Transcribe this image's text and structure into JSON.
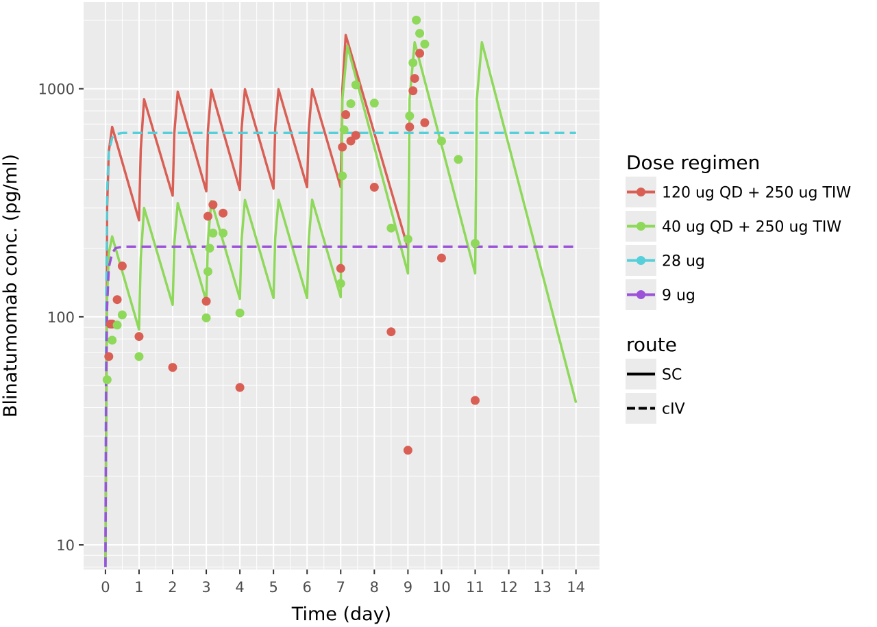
{
  "chart_data": {
    "type": "line",
    "xlabel": "Time (day)",
    "ylabel": "Blinatumomab conc. (pg/ml)",
    "xlim": [
      -0.65,
      14.7
    ],
    "ylim": [
      7.8,
      2400
    ],
    "y_scale": "log",
    "grid": true,
    "x_ticks": [
      "0",
      "1",
      "2",
      "3",
      "4",
      "5",
      "6",
      "7",
      "8",
      "9",
      "10",
      "11",
      "12",
      "13",
      "14"
    ],
    "y_ticks": [
      {
        "value": 10,
        "label": "10"
      },
      {
        "value": 100,
        "label": "100"
      },
      {
        "value": 1000,
        "label": "1000"
      }
    ],
    "legend_position": "right",
    "legends": [
      {
        "title": "Dose regimen",
        "entries": [
          {
            "label": "120 ug QD + 250 ug TIW",
            "color": "#D95F55"
          },
          {
            "label": "40 ug QD + 250 ug TIW",
            "color": "#8ED85A"
          },
          {
            "label": "28 ug",
            "color": "#55CFD9"
          },
          {
            "label": "9 ug",
            "color": "#9B52D9"
          }
        ]
      },
      {
        "title": "route",
        "entries": [
          {
            "label": "SC",
            "linetype": "solid"
          },
          {
            "label": "cIV",
            "linetype": "dashed"
          }
        ]
      }
    ],
    "series": [
      {
        "regimen": "120 ug QD + 250 ug TIW",
        "route": "SC",
        "color": "#D95F55",
        "line": [
          [
            0,
            8
          ],
          [
            0.05,
            300
          ],
          [
            0.1,
            530
          ],
          [
            0.2,
            680
          ],
          [
            1,
            265
          ],
          [
            1.05,
            540
          ],
          [
            1.15,
            900
          ],
          [
            2,
            340
          ],
          [
            2.05,
            640
          ],
          [
            2.15,
            970
          ],
          [
            3,
            355
          ],
          [
            3.05,
            660
          ],
          [
            3.15,
            990
          ],
          [
            4,
            360
          ],
          [
            4.05,
            670
          ],
          [
            4.15,
            995
          ],
          [
            5,
            365
          ],
          [
            5.05,
            670
          ],
          [
            5.15,
            995
          ],
          [
            6,
            370
          ],
          [
            6.05,
            670
          ],
          [
            6.15,
            995
          ],
          [
            7,
            370
          ],
          [
            7.05,
            1000
          ],
          [
            7.15,
            1720
          ],
          [
            9,
            200
          ]
        ],
        "points": [
          [
            0.1,
            67
          ],
          [
            0.15,
            93
          ],
          [
            0.2,
            93
          ],
          [
            0.35,
            119
          ],
          [
            0.5,
            167
          ],
          [
            1,
            82
          ],
          [
            2,
            60
          ],
          [
            3,
            117
          ],
          [
            3.05,
            276
          ],
          [
            3.2,
            310
          ],
          [
            3.5,
            285
          ],
          [
            4,
            49
          ],
          [
            7,
            163
          ],
          [
            7.05,
            555
          ],
          [
            7.15,
            770
          ],
          [
            7.3,
            590
          ],
          [
            7.45,
            625
          ],
          [
            8,
            370
          ],
          [
            8.5,
            86
          ],
          [
            9,
            26
          ],
          [
            9.05,
            680
          ],
          [
            9.15,
            980
          ],
          [
            9.2,
            1110
          ],
          [
            9.35,
            1430
          ],
          [
            9.5,
            710
          ],
          [
            10,
            181
          ],
          [
            11,
            43
          ]
        ]
      },
      {
        "regimen": "40 ug QD + 250 ug TIW",
        "route": "SC",
        "color": "#8ED85A",
        "line": [
          [
            0,
            8
          ],
          [
            0.05,
            120
          ],
          [
            0.1,
            190
          ],
          [
            0.2,
            225
          ],
          [
            1,
            88
          ],
          [
            1.05,
            180
          ],
          [
            1.15,
            300
          ],
          [
            2,
            113
          ],
          [
            2.05,
            210
          ],
          [
            2.15,
            315
          ],
          [
            3,
            117
          ],
          [
            3.05,
            215
          ],
          [
            3.15,
            322
          ],
          [
            4,
            120
          ],
          [
            4.05,
            218
          ],
          [
            4.15,
            325
          ],
          [
            5,
            121
          ],
          [
            5.05,
            220
          ],
          [
            5.15,
            326
          ],
          [
            6,
            121
          ],
          [
            6.05,
            220
          ],
          [
            6.15,
            326
          ],
          [
            7,
            122
          ],
          [
            7.05,
            900
          ],
          [
            7.2,
            1540
          ],
          [
            9,
            155
          ],
          [
            9.05,
            900
          ],
          [
            9.2,
            1600
          ],
          [
            11,
            155
          ],
          [
            11.05,
            900
          ],
          [
            11.2,
            1600
          ],
          [
            14,
            42
          ]
        ],
        "points": [
          [
            0.05,
            53
          ],
          [
            0.2,
            79
          ],
          [
            0.35,
            92
          ],
          [
            0.5,
            102
          ],
          [
            1,
            67
          ],
          [
            3,
            99
          ],
          [
            3.05,
            158
          ],
          [
            3.1,
            200
          ],
          [
            3.2,
            233
          ],
          [
            3.5,
            233
          ],
          [
            4,
            104
          ],
          [
            7,
            140
          ],
          [
            7.05,
            415
          ],
          [
            7.1,
            660
          ],
          [
            7.3,
            860
          ],
          [
            7.45,
            1040
          ],
          [
            8,
            865
          ],
          [
            8.5,
            245
          ],
          [
            9,
            219
          ],
          [
            9.05,
            760
          ],
          [
            9.15,
            1300
          ],
          [
            9.25,
            2000
          ],
          [
            9.35,
            1750
          ],
          [
            9.5,
            1570
          ],
          [
            10,
            590
          ],
          [
            10.5,
            490
          ],
          [
            11,
            210
          ]
        ]
      },
      {
        "regimen": "28 ug",
        "route": "cIV",
        "color": "#55CFD9",
        "line": [
          [
            0,
            8
          ],
          [
            0.02,
            120
          ],
          [
            0.05,
            350
          ],
          [
            0.1,
            530
          ],
          [
            0.2,
            610
          ],
          [
            0.3,
            632
          ],
          [
            0.5,
            640
          ],
          [
            14,
            640
          ]
        ],
        "points": []
      },
      {
        "regimen": "9 ug",
        "route": "cIV",
        "color": "#9B52D9",
        "line": [
          [
            0,
            8
          ],
          [
            0.02,
            50
          ],
          [
            0.05,
            110
          ],
          [
            0.1,
            165
          ],
          [
            0.2,
            190
          ],
          [
            0.3,
            200
          ],
          [
            0.5,
            203
          ],
          [
            14,
            203
          ]
        ],
        "points": []
      }
    ]
  }
}
